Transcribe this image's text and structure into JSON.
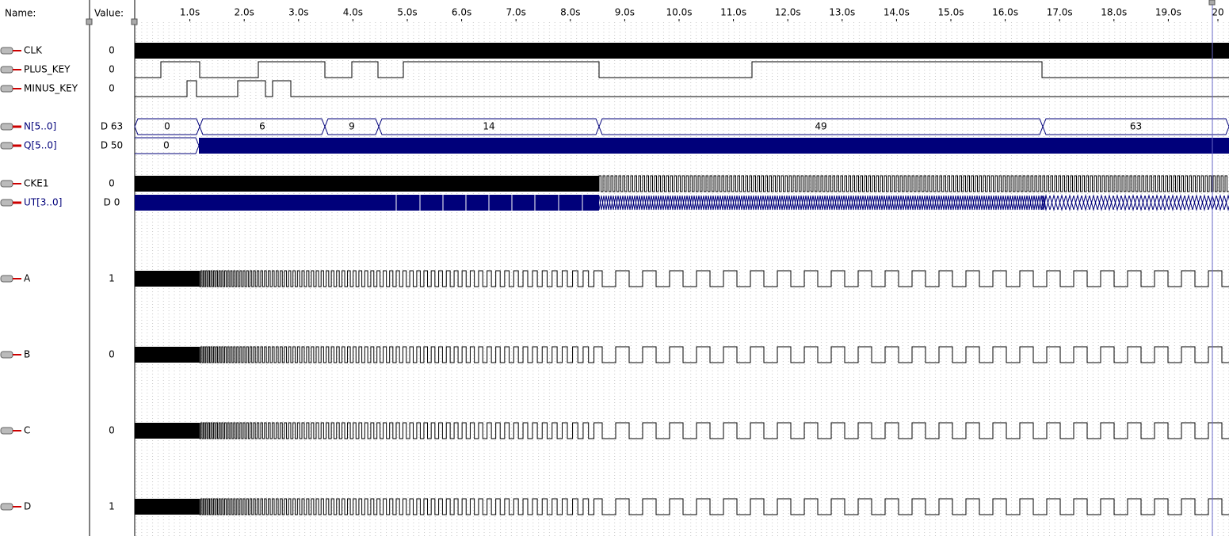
{
  "header": {
    "name": "Name:",
    "value": "Value:"
  },
  "time_axis": [
    "1.0s",
    "2.0s",
    "3.0s",
    "4.0s",
    "5.0s",
    "6.0s",
    "7.0s",
    "8.0s",
    "9.0s",
    "10.0s",
    "11.0s",
    "12.0s",
    "13.0s",
    "14.0s",
    "15.0s",
    "16.0s",
    "17.0s",
    "18.0s",
    "19.0s",
    "20"
  ],
  "signals": [
    {
      "name": "CLK",
      "value": "0"
    },
    {
      "name": "PLUS_KEY",
      "value": "0"
    },
    {
      "name": "MINUS_KEY",
      "value": "0"
    },
    {
      "name": "N[5..0]",
      "value": "D 63",
      "segments": [
        "0",
        "6",
        "9",
        "14",
        "49",
        "63"
      ]
    },
    {
      "name": "Q[5..0]",
      "value": "D 50",
      "segments": [
        "0"
      ]
    },
    {
      "name": "CKE1",
      "value": "0"
    },
    {
      "name": "UT[3..0]",
      "value": "D 0"
    },
    {
      "name": "A",
      "value": "1"
    },
    {
      "name": "B",
      "value": "0"
    },
    {
      "name": "C",
      "value": "0"
    },
    {
      "name": "D",
      "value": "1"
    }
  ]
}
